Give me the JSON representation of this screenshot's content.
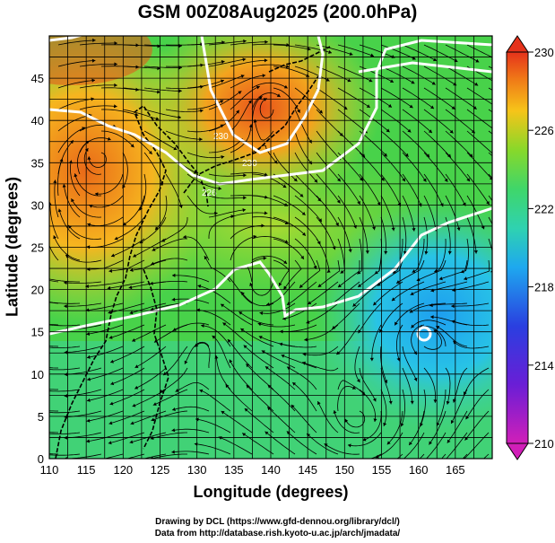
{
  "title": "GSM 00Z08Aug2025 (200.0hPa)",
  "axes": {
    "xlabel": "Longitude (degrees)",
    "ylabel": "Latitude  (degrees)",
    "xticks": [
      110,
      115,
      120,
      125,
      130,
      135,
      140,
      145,
      150,
      155,
      160,
      165
    ],
    "yticks": [
      0,
      5,
      10,
      15,
      20,
      25,
      30,
      35,
      40,
      45
    ],
    "xlim": [
      110,
      170
    ],
    "ylim": [
      0,
      50
    ],
    "grid": true
  },
  "colorbar": {
    "min": 210,
    "max": 230,
    "ticks": [
      210,
      214,
      218,
      222,
      226,
      230
    ],
    "colors": [
      "#d11fb8",
      "#3b1bd6",
      "#1ea8ef",
      "#3fd66a",
      "#88d82a",
      "#f6c419",
      "#f07a17",
      "#e5321b"
    ]
  },
  "contour_labels": [
    "226",
    "230",
    "230"
  ],
  "credits": {
    "line1": "Drawing by DCL (https://www.gfd-dennou.org/library/dcl/)",
    "line2": "Data from http://database.rish.kyoto-u.ac.jp/arch/jmadata/"
  },
  "chart_data": {
    "type": "heatmap",
    "title": "GSM 00Z08Aug2025 (200.0hPa)",
    "xlabel": "Longitude (degrees)",
    "ylabel": "Latitude  (degrees)",
    "xlim": [
      110,
      170
    ],
    "ylim": [
      0,
      50
    ],
    "field_range": [
      210,
      230
    ],
    "features": [
      {
        "lon": 138,
        "lat": 43,
        "value": 228
      },
      {
        "lon": 112,
        "lat": 35,
        "value": 227
      },
      {
        "lon": 160,
        "lat": 16,
        "value": 218
      }
    ]
  }
}
